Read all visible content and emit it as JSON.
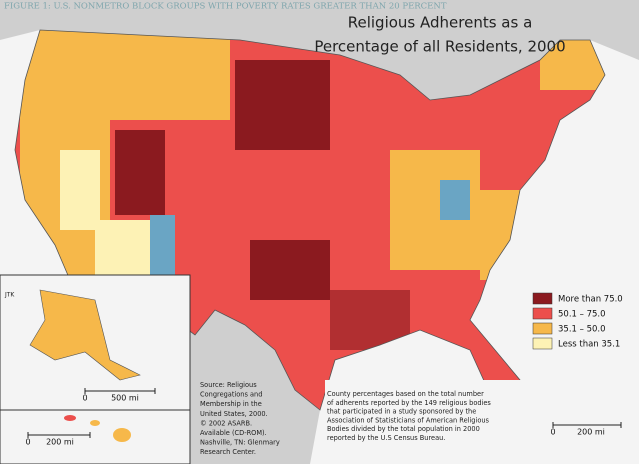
{
  "header": {
    "figure_caption": "FIGURE 1: U.S. NONMETRO BLOCK GROUPS WITH POVERTY RATES GREATER THAN 20 PERCENT",
    "title_lines": [
      "Religious Adherents as a",
      "Percentage of all Residents, 2000"
    ]
  },
  "legend": {
    "items": [
      {
        "label": "More than 75.0",
        "color": "#8b1a1f"
      },
      {
        "label": "50.1 – 75.0",
        "color": "#ec4f4c"
      },
      {
        "label": "35.1 – 50.0",
        "color": "#f6b84a"
      },
      {
        "label": "Less than 35.1",
        "color": "#fdf2b5"
      }
    ]
  },
  "credit": "JTK",
  "source": {
    "lines": [
      "Source:  Religious",
      "Congregations and",
      "Membership in the",
      "United States, 2000.",
      "© 2002 ASARB.",
      "Available (CD-ROM).",
      "Nashville, TN: Glenmary",
      "Research Center."
    ]
  },
  "note": {
    "lines": [
      "County percentages based on the total number",
      "of adherents reported by the 149 religious bodies",
      "that participated in a study sponsored by the",
      "Association of Statisticians of American Religious",
      "Bodies divided by the total population in 2000",
      "reported by the U.S Census Bureau."
    ]
  },
  "scales": [
    {
      "zero": "0",
      "distance": "500 mi"
    },
    {
      "zero": "0",
      "distance": "200 mi"
    },
    {
      "zero": "0",
      "distance": "200 mi"
    }
  ]
}
